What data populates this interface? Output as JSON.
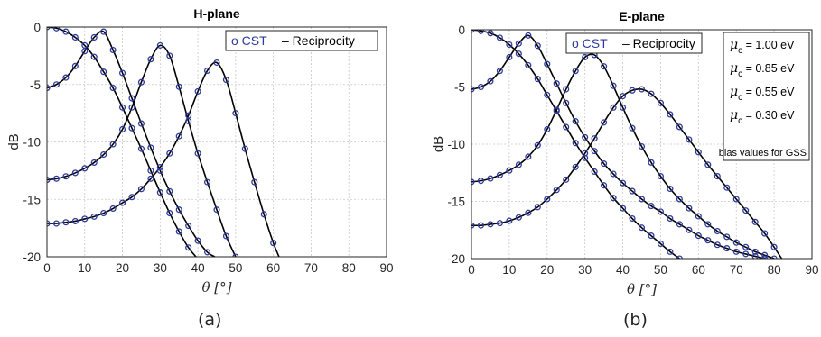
{
  "chart_data": [
    {
      "type": "line",
      "title": "H-plane",
      "caption": "(a)",
      "xlabel": "θ [°]",
      "ylabel": "dB",
      "xlim": [
        0,
        90
      ],
      "ylim": [
        -20,
        0
      ],
      "xticks": [
        "0",
        "10",
        "20",
        "30",
        "40",
        "50",
        "60",
        "70",
        "80",
        "90"
      ],
      "yticks": [
        "0",
        "-5",
        "-10",
        "-15",
        "-20"
      ],
      "grid": true,
      "legend": {
        "placement": "top-right",
        "marker_label": "o CST",
        "line_label": "– Reciprocity"
      },
      "marker_x_step": 2.5,
      "series": [
        {
          "x": [
            0,
            2.5,
            5,
            7.5,
            10,
            12.5,
            15,
            17.5,
            20,
            22.5,
            25,
            27.5,
            30,
            32.5,
            35,
            37.5,
            39.5
          ],
          "y": [
            0,
            -0.1,
            -0.4,
            -0.9,
            -1.6,
            -2.6,
            -3.9,
            -5.3,
            -7.0,
            -8.8,
            -10.6,
            -12.5,
            -14.4,
            -16.2,
            -17.8,
            -19.2,
            -20
          ]
        },
        {
          "x": [
            0,
            2.5,
            5,
            7.5,
            10,
            12.5,
            15,
            17.5,
            20,
            22.5,
            25,
            27.5,
            30,
            32.5,
            35,
            37.5,
            40,
            42.5,
            44.5
          ],
          "y": [
            -5.3,
            -5.0,
            -4.4,
            -3.4,
            -2.1,
            -0.9,
            -0.4,
            -2.0,
            -4.0,
            -6.2,
            -8.4,
            -10.5,
            -12.5,
            -14.3,
            -15.9,
            -17.3,
            -18.6,
            -19.6,
            -20
          ]
        },
        {
          "x": [
            0,
            2.5,
            5,
            7.5,
            10,
            12.5,
            15,
            17.5,
            20,
            22.5,
            25,
            27.5,
            30,
            32.5,
            35,
            37.5,
            40,
            42.5,
            45,
            47.5,
            50
          ],
          "y": [
            -13.3,
            -13.2,
            -13.0,
            -12.7,
            -12.3,
            -11.8,
            -11.1,
            -10.2,
            -8.9,
            -7.0,
            -4.8,
            -2.8,
            -1.6,
            -2.5,
            -5.2,
            -8.2,
            -11.0,
            -13.5,
            -15.9,
            -18.2,
            -20
          ]
        },
        {
          "x": [
            0,
            2.5,
            5,
            7.5,
            10,
            12.5,
            15,
            17.5,
            20,
            22.5,
            25,
            27.5,
            30,
            32.5,
            35,
            37.5,
            40,
            42.5,
            45,
            47.5,
            50,
            52.5,
            55,
            57.5,
            60,
            61.5
          ],
          "y": [
            -17.1,
            -17.1,
            -17.0,
            -16.9,
            -16.7,
            -16.5,
            -16.2,
            -15.8,
            -15.3,
            -14.8,
            -14.1,
            -13.2,
            -12.2,
            -11.0,
            -9.5,
            -7.7,
            -5.6,
            -3.8,
            -3.1,
            -4.6,
            -7.5,
            -10.6,
            -13.5,
            -16.3,
            -18.8,
            -20
          ]
        }
      ]
    },
    {
      "type": "line",
      "title": "E-plane",
      "caption": "(b)",
      "xlabel": "θ [°]",
      "ylabel": "dB",
      "xlim": [
        0,
        90
      ],
      "ylim": [
        -20,
        0
      ],
      "xticks": [
        "0",
        "10",
        "20",
        "30",
        "40",
        "50",
        "60",
        "70",
        "80",
        "90"
      ],
      "yticks": [
        "0",
        "-5",
        "-10",
        "-15",
        "-20"
      ],
      "grid": true,
      "legend": {
        "placement": "top-right",
        "marker_label": "o CST",
        "line_label": "– Reciprocity"
      },
      "bias_box": {
        "entries": [
          {
            "symbol": "μ",
            "subscript": "c",
            "text": " = 1.00 eV"
          },
          {
            "symbol": "μ",
            "subscript": "c",
            "text": " = 0.85 eV"
          },
          {
            "symbol": "μ",
            "subscript": "c",
            "text": " = 0.55 eV"
          },
          {
            "symbol": "μ",
            "subscript": "c",
            "text": " = 0.30 eV"
          }
        ],
        "footer": "bias values for GSS"
      },
      "marker_x_step": 2.5,
      "series": [
        {
          "x": [
            0,
            2.5,
            5,
            7.5,
            10,
            12.5,
            15,
            17.5,
            20,
            22.5,
            25,
            27.5,
            30,
            32.5,
            35,
            37.5,
            40,
            42.5,
            45,
            47.5,
            50,
            52.5,
            55
          ],
          "y": [
            0,
            -0.1,
            -0.3,
            -0.7,
            -1.3,
            -2.1,
            -3.1,
            -4.3,
            -5.7,
            -7.1,
            -8.5,
            -9.9,
            -11.2,
            -12.4,
            -13.6,
            -14.7,
            -15.6,
            -16.5,
            -17.3,
            -18.0,
            -18.7,
            -19.4,
            -20
          ]
        },
        {
          "x": [
            0,
            2.5,
            5,
            7.5,
            10,
            12.5,
            15,
            17.5,
            20,
            22.5,
            25,
            27.5,
            30,
            32.5,
            35,
            37.5,
            40,
            42.5,
            45,
            47.5,
            50,
            52.5,
            55,
            57.5,
            60,
            62.5,
            65,
            67.5,
            70,
            72.5,
            75,
            77.5
          ],
          "y": [
            -5.2,
            -5.0,
            -4.5,
            -3.6,
            -2.4,
            -1.2,
            -0.5,
            -1.4,
            -3.0,
            -4.7,
            -6.4,
            -8.0,
            -9.4,
            -10.6,
            -11.7,
            -12.6,
            -13.4,
            -14.1,
            -14.8,
            -15.4,
            -15.9,
            -16.5,
            -17.0,
            -17.5,
            -18.0,
            -18.4,
            -18.8,
            -19.1,
            -19.4,
            -19.6,
            -19.8,
            -20
          ]
        },
        {
          "x": [
            0,
            2.5,
            5,
            7.5,
            10,
            12.5,
            15,
            17.5,
            20,
            22.5,
            25,
            27.5,
            30,
            32.5,
            35,
            37.5,
            40,
            42.5,
            45,
            47.5,
            50,
            52.5,
            55,
            57.5,
            60,
            62.5,
            65,
            67.5,
            70,
            72.5,
            75,
            77.5,
            80
          ],
          "y": [
            -13.3,
            -13.2,
            -13.0,
            -12.7,
            -12.3,
            -11.8,
            -11.1,
            -10.1,
            -8.7,
            -7.0,
            -5.2,
            -3.6,
            -2.4,
            -2.2,
            -3.2,
            -4.9,
            -6.8,
            -8.6,
            -10.2,
            -11.6,
            -12.8,
            -13.9,
            -14.8,
            -15.6,
            -16.3,
            -17.0,
            -17.6,
            -18.1,
            -18.6,
            -19.0,
            -19.4,
            -19.7,
            -20
          ]
        },
        {
          "x": [
            0,
            2.5,
            5,
            7.5,
            10,
            12.5,
            15,
            17.5,
            20,
            22.5,
            25,
            27.5,
            30,
            32.5,
            35,
            37.5,
            40,
            42.5,
            45,
            47.5,
            50,
            52.5,
            55,
            57.5,
            60,
            62.5,
            65,
            67.5,
            70,
            72.5,
            75,
            77.5,
            80,
            82
          ],
          "y": [
            -17.1,
            -17.1,
            -17.0,
            -16.9,
            -16.7,
            -16.4,
            -16.0,
            -15.5,
            -14.8,
            -14.0,
            -13.1,
            -12.0,
            -10.8,
            -9.5,
            -8.1,
            -6.8,
            -5.8,
            -5.3,
            -5.2,
            -5.6,
            -6.4,
            -7.4,
            -8.5,
            -9.6,
            -10.7,
            -11.8,
            -12.8,
            -13.8,
            -14.8,
            -15.8,
            -16.8,
            -17.8,
            -19.0,
            -20
          ]
        }
      ]
    }
  ]
}
